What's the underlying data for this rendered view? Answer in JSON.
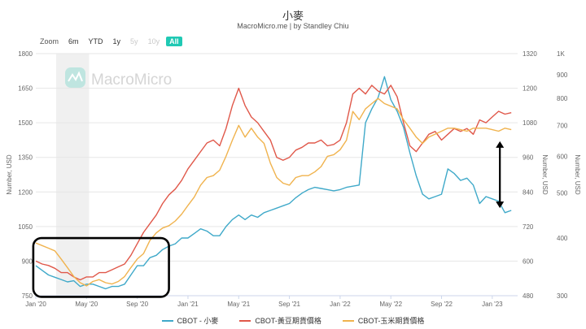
{
  "header": {
    "title": "小麥",
    "subtitle": "MacroMicro.me | by Standley Chiu"
  },
  "zoom": {
    "label": "Zoom",
    "buttons": [
      {
        "label": "6m",
        "state": "normal"
      },
      {
        "label": "YTD",
        "state": "normal"
      },
      {
        "label": "1y",
        "state": "normal"
      },
      {
        "label": "5y",
        "state": "disabled"
      },
      {
        "label": "10y",
        "state": "disabled"
      },
      {
        "label": "All",
        "state": "active"
      }
    ]
  },
  "watermark": "MacroMicro",
  "colors": {
    "wheat": "#3fa9c9",
    "soy": "#e0584a",
    "corn": "#f0b34e",
    "accent": "#20c9b4",
    "shade": "#ececec"
  },
  "chart_data": {
    "type": "line",
    "x_ticks": [
      "Jan '20",
      "May '20",
      "Sep '20",
      "Jan '21",
      "May '21",
      "Sep '21",
      "Jan '22",
      "May '22",
      "Sep '22",
      "Jan '23"
    ],
    "x_tick_months": [
      0,
      4,
      8,
      12,
      16,
      20,
      24,
      28,
      32,
      36
    ],
    "x_range_months": [
      0,
      38
    ],
    "shaded_range_months": [
      1.6,
      4.2
    ],
    "axes": [
      {
        "id": "left",
        "title": "Number, USD",
        "range": [
          750,
          1800
        ],
        "ticks": [
          "750",
          "900",
          "1050",
          "1200",
          "1350",
          "1500",
          "1650",
          "1800"
        ]
      },
      {
        "id": "right1",
        "title": "Number, USD",
        "range": [
          480,
          1320
        ],
        "ticks": [
          "480",
          "600",
          "720",
          "840",
          "960",
          "1080",
          "1200",
          "1320"
        ]
      },
      {
        "id": "right2",
        "title": "Number, USD",
        "scale": "log",
        "range": [
          300,
          1000
        ],
        "ticks": [
          "300",
          "400",
          "500",
          "600",
          "700",
          "800",
          "900",
          "1K"
        ]
      }
    ],
    "series": [
      {
        "name": "CBOT - 小麥",
        "axis": "left",
        "color": "#3fa9c9",
        "points": [
          [
            0,
            880
          ],
          [
            0.5,
            860
          ],
          [
            1,
            840
          ],
          [
            1.5,
            830
          ],
          [
            2,
            820
          ],
          [
            2.5,
            810
          ],
          [
            3,
            815
          ],
          [
            3.5,
            790
          ],
          [
            4,
            800
          ],
          [
            4.5,
            800
          ],
          [
            5,
            790
          ],
          [
            5.5,
            780
          ],
          [
            6,
            790
          ],
          [
            6.5,
            790
          ],
          [
            7,
            800
          ],
          [
            7.5,
            840
          ],
          [
            8,
            880
          ],
          [
            8.5,
            880
          ],
          [
            9,
            915
          ],
          [
            9.5,
            925
          ],
          [
            10,
            950
          ],
          [
            10.5,
            965
          ],
          [
            11,
            975
          ],
          [
            11.5,
            1000
          ],
          [
            12,
            1000
          ],
          [
            12.5,
            1020
          ],
          [
            13,
            1040
          ],
          [
            13.5,
            1030
          ],
          [
            14,
            1010
          ],
          [
            14.5,
            1010
          ],
          [
            15,
            1050
          ],
          [
            15.5,
            1080
          ],
          [
            16,
            1100
          ],
          [
            16.5,
            1080
          ],
          [
            17,
            1100
          ],
          [
            17.5,
            1090
          ],
          [
            18,
            1110
          ],
          [
            18.5,
            1120
          ],
          [
            19,
            1130
          ],
          [
            19.5,
            1140
          ],
          [
            20,
            1150
          ],
          [
            20.5,
            1175
          ],
          [
            21,
            1195
          ],
          [
            21.5,
            1210
          ],
          [
            22,
            1220
          ],
          [
            22.5,
            1215
          ],
          [
            23,
            1210
          ],
          [
            23.5,
            1205
          ],
          [
            24,
            1210
          ],
          [
            24.5,
            1220
          ],
          [
            25,
            1225
          ],
          [
            25.5,
            1230
          ],
          [
            26,
            1500
          ],
          [
            26.5,
            1560
          ],
          [
            27,
            1610
          ],
          [
            27.5,
            1700
          ],
          [
            28,
            1600
          ],
          [
            28.5,
            1550
          ],
          [
            29,
            1480
          ],
          [
            29.5,
            1370
          ],
          [
            30,
            1270
          ],
          [
            30.5,
            1190
          ],
          [
            31,
            1170
          ],
          [
            31.5,
            1180
          ],
          [
            32,
            1190
          ],
          [
            32.5,
            1300
          ],
          [
            33,
            1280
          ],
          [
            33.5,
            1250
          ],
          [
            34,
            1260
          ],
          [
            34.5,
            1230
          ],
          [
            35,
            1150
          ],
          [
            35.5,
            1180
          ],
          [
            36,
            1170
          ],
          [
            36.5,
            1160
          ],
          [
            37,
            1110
          ],
          [
            37.5,
            1120
          ]
        ]
      },
      {
        "name": "CBOT-黃豆期貨價格",
        "axis": "right1",
        "color": "#e0584a",
        "points": [
          [
            0,
            600
          ],
          [
            0.5,
            590
          ],
          [
            1,
            585
          ],
          [
            1.5,
            575
          ],
          [
            2,
            560
          ],
          [
            2.5,
            560
          ],
          [
            3,
            545
          ],
          [
            3.5,
            535
          ],
          [
            4,
            545
          ],
          [
            4.5,
            545
          ],
          [
            5,
            560
          ],
          [
            5.5,
            560
          ],
          [
            6,
            570
          ],
          [
            6.5,
            580
          ],
          [
            7,
            590
          ],
          [
            7.5,
            620
          ],
          [
            8,
            660
          ],
          [
            8.5,
            700
          ],
          [
            9,
            730
          ],
          [
            9.5,
            760
          ],
          [
            10,
            800
          ],
          [
            10.5,
            830
          ],
          [
            11,
            850
          ],
          [
            11.5,
            880
          ],
          [
            12,
            920
          ],
          [
            12.5,
            950
          ],
          [
            13,
            980
          ],
          [
            13.5,
            1010
          ],
          [
            14,
            1020
          ],
          [
            14.5,
            1000
          ],
          [
            15,
            1060
          ],
          [
            15.5,
            1140
          ],
          [
            16,
            1200
          ],
          [
            16.5,
            1140
          ],
          [
            17,
            1100
          ],
          [
            17.5,
            1080
          ],
          [
            18,
            1050
          ],
          [
            18.5,
            1020
          ],
          [
            19,
            960
          ],
          [
            19.5,
            950
          ],
          [
            20,
            960
          ],
          [
            20.5,
            985
          ],
          [
            21,
            995
          ],
          [
            21.5,
            1010
          ],
          [
            22,
            1010
          ],
          [
            22.5,
            1020
          ],
          [
            23,
            1000
          ],
          [
            23.5,
            1005
          ],
          [
            24,
            1020
          ],
          [
            24.5,
            1080
          ],
          [
            25,
            1180
          ],
          [
            25.5,
            1200
          ],
          [
            26,
            1180
          ],
          [
            26.5,
            1210
          ],
          [
            27,
            1190
          ],
          [
            27.5,
            1180
          ],
          [
            28,
            1210
          ],
          [
            28.5,
            1170
          ],
          [
            29,
            1080
          ],
          [
            29.5,
            1000
          ],
          [
            30,
            980
          ],
          [
            30.5,
            1010
          ],
          [
            31,
            1040
          ],
          [
            31.5,
            1050
          ],
          [
            32,
            1020
          ],
          [
            32.5,
            1040
          ],
          [
            33,
            1060
          ],
          [
            33.5,
            1050
          ],
          [
            34,
            1060
          ],
          [
            34.5,
            1040
          ],
          [
            35,
            1090
          ],
          [
            35.5,
            1080
          ],
          [
            36,
            1100
          ],
          [
            36.5,
            1120
          ],
          [
            37,
            1110
          ],
          [
            37.5,
            1115
          ]
        ]
      },
      {
        "name": "CBOT-玉米期貨價格",
        "axis": "right2",
        "color": "#f0b34e",
        "points": [
          [
            0,
            390
          ],
          [
            0.5,
            385
          ],
          [
            1,
            380
          ],
          [
            1.5,
            375
          ],
          [
            2,
            360
          ],
          [
            2.5,
            345
          ],
          [
            3,
            330
          ],
          [
            3.5,
            320
          ],
          [
            4,
            315
          ],
          [
            4.5,
            322
          ],
          [
            5,
            325
          ],
          [
            5.5,
            320
          ],
          [
            6,
            318
          ],
          [
            6.5,
            322
          ],
          [
            7,
            330
          ],
          [
            7.5,
            345
          ],
          [
            8,
            360
          ],
          [
            8.5,
            370
          ],
          [
            9,
            395
          ],
          [
            9.5,
            410
          ],
          [
            10,
            420
          ],
          [
            10.5,
            425
          ],
          [
            11,
            435
          ],
          [
            11.5,
            450
          ],
          [
            12,
            470
          ],
          [
            12.5,
            490
          ],
          [
            13,
            520
          ],
          [
            13.5,
            540
          ],
          [
            14,
            545
          ],
          [
            14.5,
            560
          ],
          [
            15,
            600
          ],
          [
            15.5,
            650
          ],
          [
            16,
            700
          ],
          [
            16.5,
            660
          ],
          [
            17,
            690
          ],
          [
            17.5,
            660
          ],
          [
            18,
            640
          ],
          [
            18.5,
            580
          ],
          [
            19,
            540
          ],
          [
            19.5,
            525
          ],
          [
            20,
            520
          ],
          [
            20.5,
            540
          ],
          [
            21,
            545
          ],
          [
            21.5,
            545
          ],
          [
            22,
            555
          ],
          [
            22.5,
            570
          ],
          [
            23,
            600
          ],
          [
            23.5,
            605
          ],
          [
            24,
            620
          ],
          [
            24.5,
            650
          ],
          [
            25,
            750
          ],
          [
            25.5,
            720
          ],
          [
            26,
            760
          ],
          [
            26.5,
            780
          ],
          [
            27,
            800
          ],
          [
            27.5,
            780
          ],
          [
            28,
            770
          ],
          [
            28.5,
            760
          ],
          [
            29,
            720
          ],
          [
            29.5,
            690
          ],
          [
            30,
            660
          ],
          [
            30.5,
            640
          ],
          [
            31,
            660
          ],
          [
            31.5,
            670
          ],
          [
            32,
            680
          ],
          [
            32.5,
            690
          ],
          [
            33,
            690
          ],
          [
            33.5,
            685
          ],
          [
            34,
            680
          ],
          [
            34.5,
            690
          ],
          [
            35,
            690
          ],
          [
            35.5,
            690
          ],
          [
            36,
            685
          ],
          [
            36.5,
            680
          ],
          [
            37,
            690
          ],
          [
            37.5,
            685
          ]
        ]
      }
    ],
    "annotations": [
      {
        "type": "rounded-rect",
        "x_months": [
          -0.2,
          10.5
        ],
        "axis": "left",
        "y_range": [
          745,
          1000
        ]
      },
      {
        "type": "double-arrow",
        "x_month": 36.6,
        "axis": "left",
        "y_range": [
          1130,
          1420
        ]
      }
    ]
  }
}
